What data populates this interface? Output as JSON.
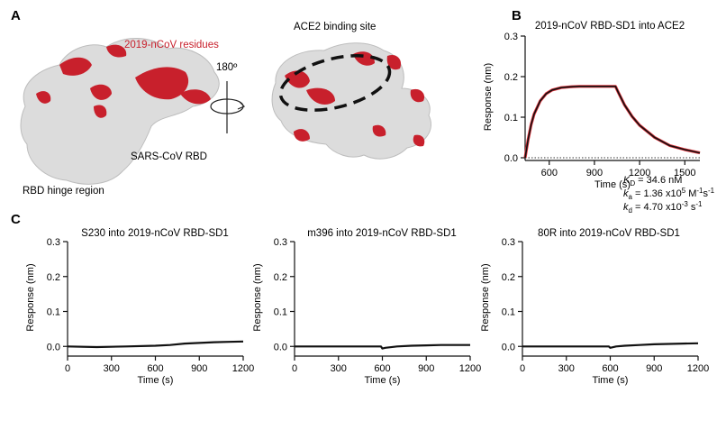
{
  "panels": {
    "a": {
      "letter": "A",
      "residues_label": "2019-nCoV residues",
      "binding_label": "ACE2 binding site",
      "rotation_label": "180º",
      "sars_label": "SARS-CoV RBD",
      "hinge_label": "RBD hinge region"
    },
    "b": {
      "letter": "B"
    },
    "c": {
      "letter": "C"
    }
  },
  "colors": {
    "highlight": "#c8202c",
    "surface": "#dcdcdc",
    "trace": "#111111",
    "fit": "#e0313a"
  },
  "chart_data": [
    {
      "type": "line",
      "title": "2019-nCoV RBD-SD1 into ACE2",
      "xlabel": "Time (s)",
      "ylabel": "Response (nm)",
      "xlim": [
        440,
        1600
      ],
      "ylim": [
        0,
        0.3
      ],
      "xticks": [
        600,
        900,
        1200,
        1500
      ],
      "yticks": [
        0.0,
        0.1,
        0.2,
        0.3
      ],
      "annotations": {
        "kd_label": "K",
        "kd_sub": "D",
        "kd_value": " = 34.6 nM",
        "ka_label": "k",
        "ka_sub": "a",
        "ka_value": " = 1.36 x10",
        "ka_exp": "5",
        "ka_unit": " M",
        "ka_unit_exp": "-1",
        "ka_unit2": "s",
        "ka_unit2_exp": "-1",
        "kdis_label": "k",
        "kdis_sub": "d",
        "kdis_value": " = 4.70 x10",
        "kdis_exp": "-3",
        "kdis_unit": " s",
        "kdis_unit_exp": "-1"
      },
      "series": [
        {
          "x": [
            440,
            460,
            480,
            500,
            540,
            580,
            620,
            680,
            740,
            800,
            900,
            1000,
            1040,
            1060,
            1100,
            1150,
            1200,
            1300,
            1400,
            1500,
            1600
          ],
          "y": [
            0.0,
            0.045,
            0.082,
            0.108,
            0.14,
            0.158,
            0.167,
            0.173,
            0.175,
            0.176,
            0.176,
            0.176,
            0.176,
            0.16,
            0.13,
            0.102,
            0.08,
            0.05,
            0.03,
            0.02,
            0.012
          ]
        }
      ]
    },
    {
      "type": "line",
      "title": "S230 into 2019-nCoV RBD-SD1",
      "xlabel": "Time (s)",
      "ylabel": "Response (nm)",
      "xlim": [
        0,
        1200
      ],
      "ylim": [
        -0.02,
        0.3
      ],
      "xticks": [
        0,
        300,
        600,
        900,
        1200
      ],
      "yticks": [
        0.0,
        0.1,
        0.2,
        0.3
      ],
      "series": [
        {
          "x": [
            0,
            200,
            400,
            600,
            700,
            800,
            900,
            1000,
            1100,
            1200
          ],
          "y": [
            0.0,
            -0.002,
            0.0,
            0.002,
            0.004,
            0.008,
            0.01,
            0.012,
            0.013,
            0.014
          ]
        }
      ]
    },
    {
      "type": "line",
      "title": "m396 into 2019-nCoV RBD-SD1",
      "xlabel": "Time (s)",
      "ylabel": "Response (nm)",
      "xlim": [
        0,
        1200
      ],
      "ylim": [
        -0.02,
        0.3
      ],
      "xticks": [
        0,
        300,
        600,
        900,
        1200
      ],
      "yticks": [
        0.0,
        0.1,
        0.2,
        0.3
      ],
      "series": [
        {
          "x": [
            0,
            200,
            400,
            590,
            600,
            620,
            700,
            800,
            900,
            1000,
            1100,
            1200
          ],
          "y": [
            0.0,
            0.0,
            0.0,
            0.0,
            -0.006,
            -0.004,
            0.0,
            0.002,
            0.003,
            0.004,
            0.004,
            0.004
          ]
        }
      ]
    },
    {
      "type": "line",
      "title": "80R into 2019-nCoV RBD-SD1",
      "xlabel": "Time (s)",
      "ylabel": "Response (nm)",
      "xlim": [
        0,
        1200
      ],
      "ylim": [
        -0.02,
        0.3
      ],
      "xticks": [
        0,
        300,
        600,
        900,
        1200
      ],
      "yticks": [
        0.0,
        0.1,
        0.2,
        0.3
      ],
      "series": [
        {
          "x": [
            0,
            200,
            400,
            590,
            600,
            640,
            700,
            800,
            900,
            1000,
            1100,
            1200
          ],
          "y": [
            0.0,
            0.0,
            0.0,
            0.0,
            -0.004,
            0.0,
            0.002,
            0.004,
            0.006,
            0.007,
            0.008,
            0.009
          ]
        }
      ]
    }
  ]
}
